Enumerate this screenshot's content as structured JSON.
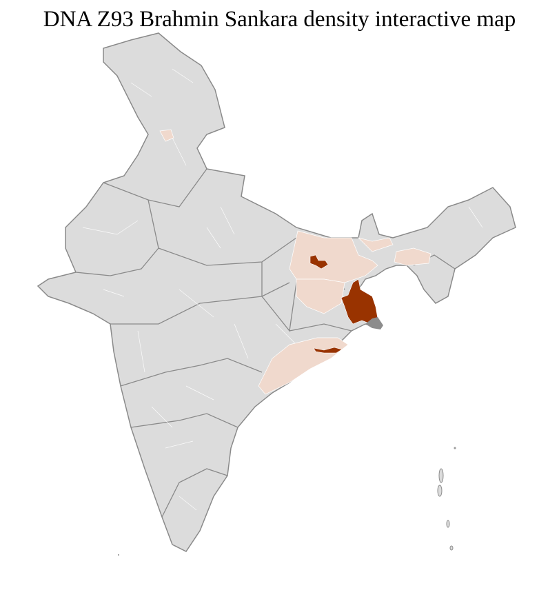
{
  "title": "DNA Z93 Brahmin Sankara density interactive map",
  "colors": {
    "land": "#dcdcdc",
    "state_border": "#8a8a8a",
    "district_border": "#ffffff",
    "low_density": "#f0d9cd",
    "high_density": "#993300",
    "no_data": "#8c8c8c"
  },
  "legend": null
}
